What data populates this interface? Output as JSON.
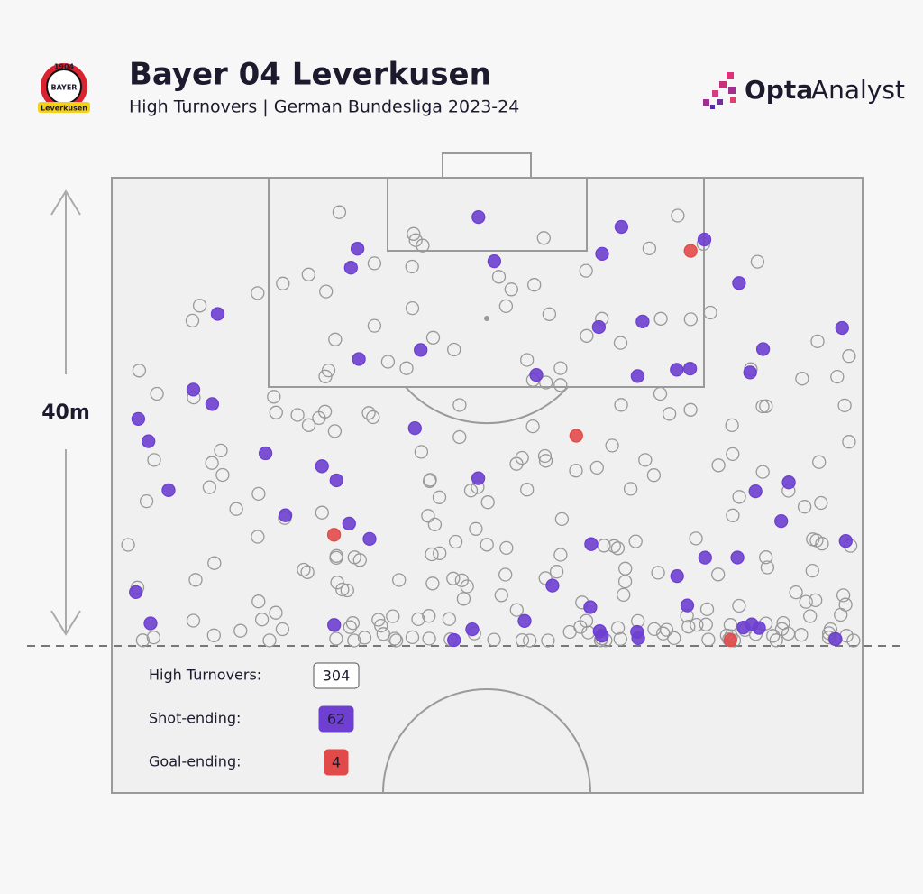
{
  "header": {
    "title": "Bayer 04 Leverkusen",
    "subtitle": "High Turnovers | German Bundesliga 2023-24",
    "badge": {
      "year": "1904",
      "top": "BAYER",
      "name": "Leverkusen"
    }
  },
  "brand": {
    "bold": "Opta",
    "light": "Analyst"
  },
  "distance_label": "40m",
  "legend": [
    {
      "label": "High Turnovers:",
      "value": 304,
      "color": "#ffffff"
    },
    {
      "label": "Shot-ending:",
      "value": 62,
      "color": "#6e3fd0"
    },
    {
      "label": "Goal-ending:",
      "value": 4,
      "color": "#e24a4a"
    }
  ]
}
